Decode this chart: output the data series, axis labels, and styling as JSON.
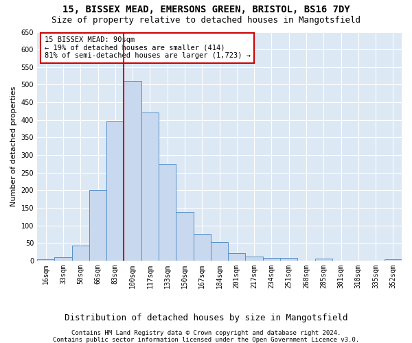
{
  "title1": "15, BISSEX MEAD, EMERSONS GREEN, BRISTOL, BS16 7DY",
  "title2": "Size of property relative to detached houses in Mangotsfield",
  "xlabel": "Distribution of detached houses by size in Mangotsfield",
  "ylabel": "Number of detached properties",
  "footnote1": "Contains HM Land Registry data © Crown copyright and database right 2024.",
  "footnote2": "Contains public sector information licensed under the Open Government Licence v3.0.",
  "annotation_line1": "15 BISSEX MEAD: 90sqm",
  "annotation_line2": "← 19% of detached houses are smaller (414)",
  "annotation_line3": "81% of semi-detached houses are larger (1,723) →",
  "bar_labels": [
    "16sqm",
    "33sqm",
    "50sqm",
    "66sqm",
    "83sqm",
    "100sqm",
    "117sqm",
    "133sqm",
    "150sqm",
    "167sqm",
    "184sqm",
    "201sqm",
    "217sqm",
    "234sqm",
    "251sqm",
    "268sqm",
    "285sqm",
    "301sqm",
    "318sqm",
    "335sqm",
    "352sqm"
  ],
  "bar_values": [
    4,
    10,
    43,
    200,
    395,
    510,
    420,
    275,
    138,
    75,
    52,
    22,
    12,
    8,
    7,
    0,
    5,
    0,
    0,
    0,
    3
  ],
  "bar_color": "#c8d8ee",
  "bar_edge_color": "#5590c8",
  "vline_x": 4.5,
  "vline_color": "#cc0000",
  "ylim": [
    0,
    650
  ],
  "yticks": [
    0,
    50,
    100,
    150,
    200,
    250,
    300,
    350,
    400,
    450,
    500,
    550,
    600,
    650
  ],
  "annotation_box_facecolor": "#ffffff",
  "annotation_box_edgecolor": "#cc0000",
  "fig_facecolor": "#ffffff",
  "plot_facecolor": "#dde8f5",
  "grid_color": "#ffffff",
  "title1_fontsize": 10,
  "title2_fontsize": 9,
  "xlabel_fontsize": 9,
  "ylabel_fontsize": 8,
  "tick_fontsize": 7,
  "annotation_fontsize": 7.5,
  "footnote_fontsize": 6.5
}
